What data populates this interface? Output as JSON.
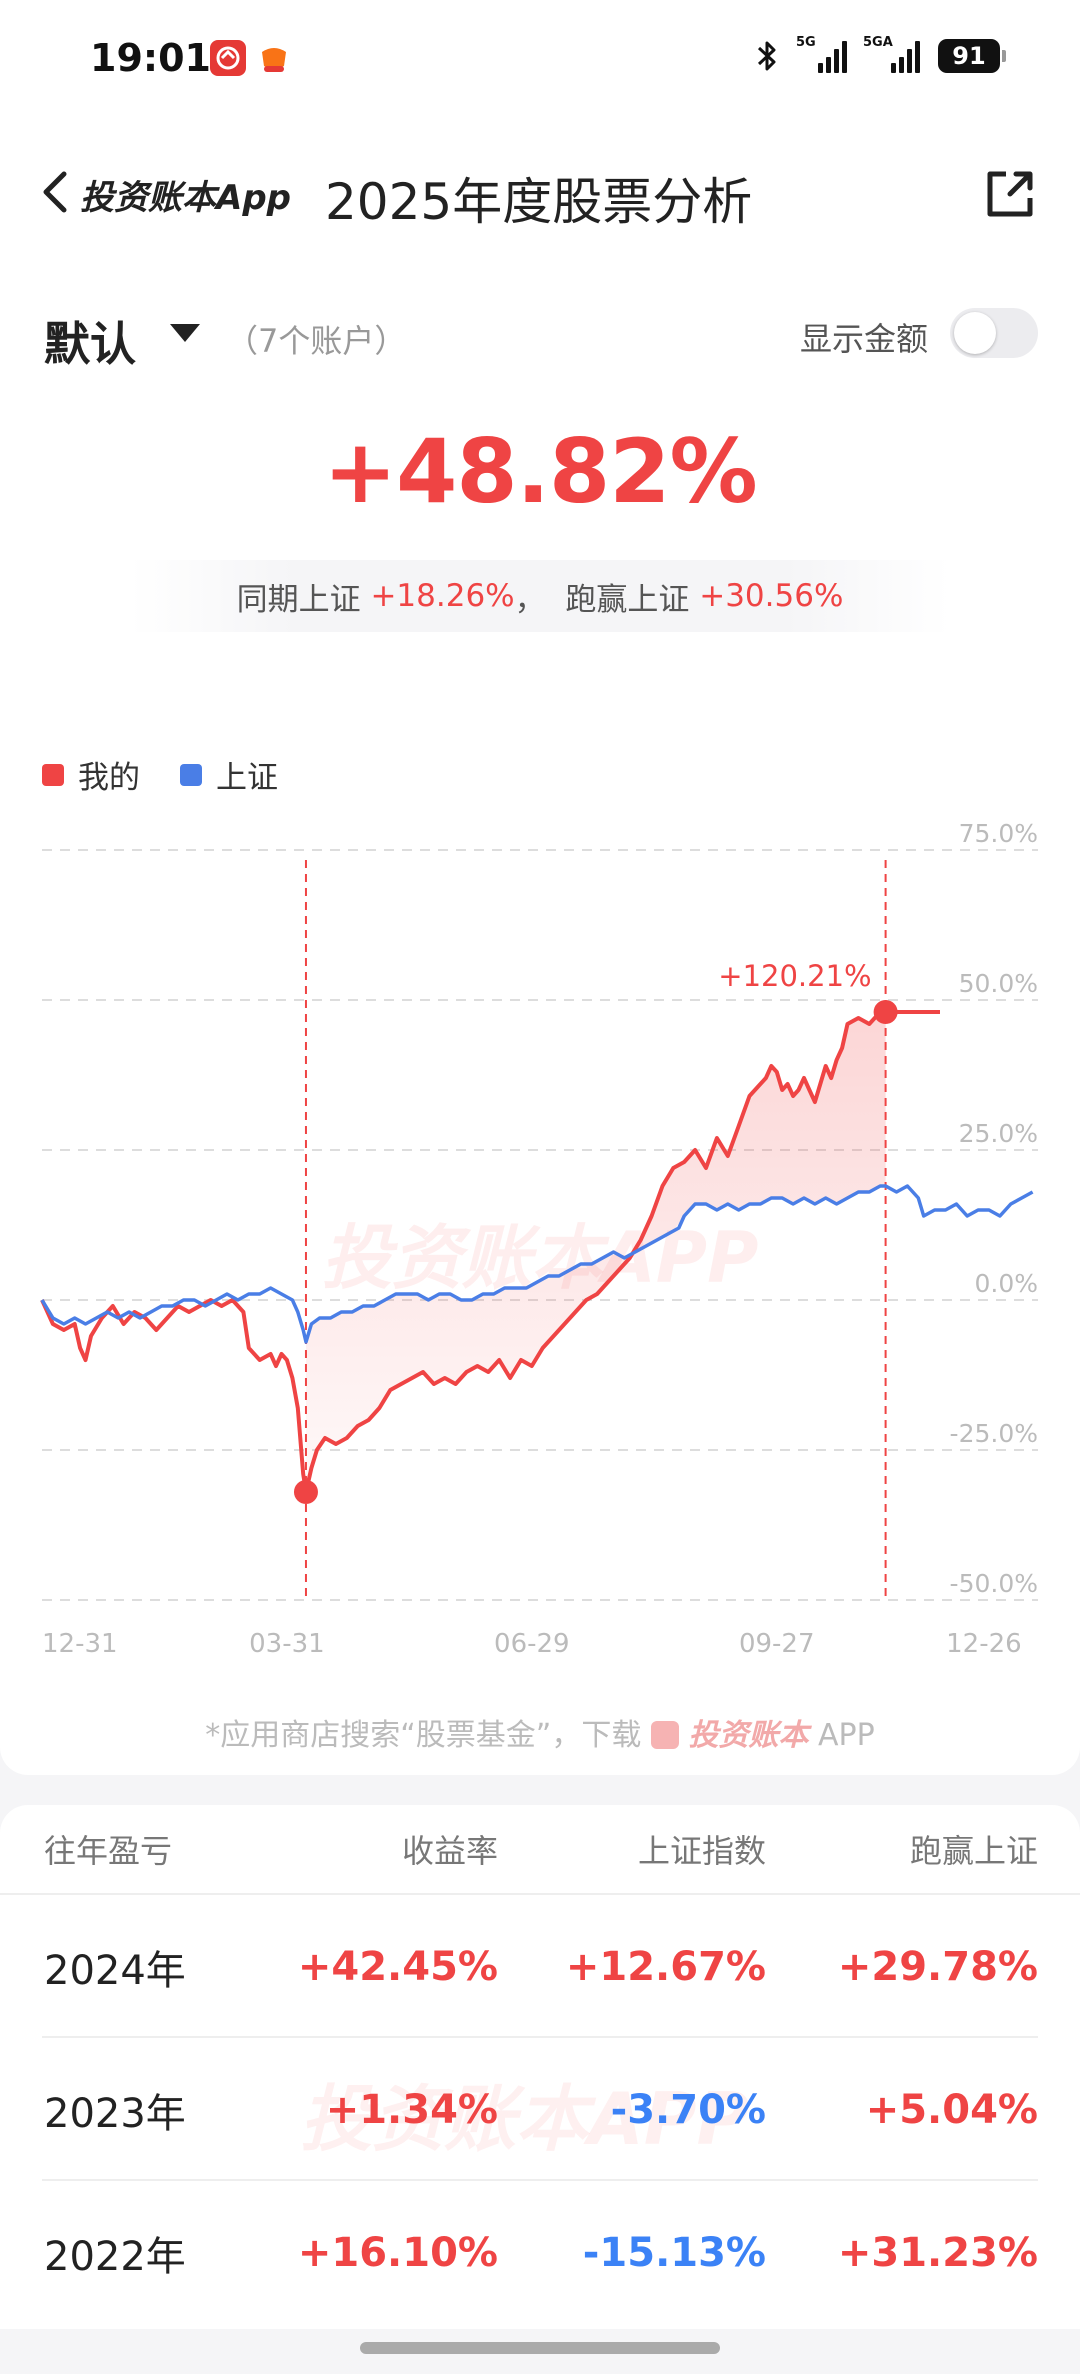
{
  "status_bar": {
    "time": "19:01",
    "battery": "91",
    "signal1_tag": "5G",
    "signal2_tag": "5GA",
    "bluetooth_icon": "bluetooth-icon"
  },
  "nav": {
    "brand": "投资账本App",
    "title": "2025年度股票分析"
  },
  "account": {
    "name": "默认",
    "count": "（7个账户）",
    "toggle_label": "显示金额",
    "toggle_on": false
  },
  "headline": {
    "return": "+48.82%",
    "compare_prefix": "同期上证",
    "compare_value": "+18.26%",
    "sep": "，",
    "beat_prefix": "跑赢上证",
    "beat_value": "+30.56%"
  },
  "legend": {
    "mine": "我的",
    "index": "上证"
  },
  "colors": {
    "mine": "#ef4444",
    "index": "#4a7ee6",
    "grid": "#dddddd"
  },
  "chart_data": {
    "type": "line",
    "title": "",
    "y_tick_labels": [
      "75.0%",
      "50.0%",
      "25.0%",
      "0.0%",
      "-25.0%",
      "-50.0%"
    ],
    "y_ticks": [
      75,
      50,
      25,
      0,
      -25,
      -50
    ],
    "ylim": [
      -50,
      75
    ],
    "x_tick_labels": [
      "12-31",
      "03-31",
      "06-29",
      "09-27",
      "12-26"
    ],
    "x_ticks": [
      0,
      90,
      180,
      270,
      360
    ],
    "xlim": [
      0,
      366
    ],
    "watermark": "投资账本APP",
    "annotation": {
      "label": "+120.21%",
      "x": 310,
      "y": 48
    },
    "marker_low": {
      "x": 97,
      "y": -32
    },
    "vlines": [
      97,
      310
    ],
    "series": [
      {
        "name": "我的",
        "points": [
          [
            0,
            0
          ],
          [
            4,
            -4
          ],
          [
            8,
            -5
          ],
          [
            12,
            -4
          ],
          [
            14,
            -8
          ],
          [
            16,
            -10
          ],
          [
            18,
            -6
          ],
          [
            22,
            -3
          ],
          [
            26,
            -1
          ],
          [
            30,
            -4
          ],
          [
            34,
            -2
          ],
          [
            38,
            -3
          ],
          [
            42,
            -5
          ],
          [
            46,
            -3
          ],
          [
            50,
            -1
          ],
          [
            54,
            -2
          ],
          [
            58,
            -1
          ],
          [
            62,
            0
          ],
          [
            66,
            -1
          ],
          [
            70,
            0
          ],
          [
            74,
            -2
          ],
          [
            76,
            -8
          ],
          [
            80,
            -10
          ],
          [
            84,
            -9
          ],
          [
            86,
            -11
          ],
          [
            88,
            -9
          ],
          [
            90,
            -10
          ],
          [
            92,
            -13
          ],
          [
            94,
            -18
          ],
          [
            96,
            -29
          ],
          [
            97,
            -32
          ],
          [
            99,
            -28
          ],
          [
            101,
            -25
          ],
          [
            104,
            -23
          ],
          [
            108,
            -24
          ],
          [
            112,
            -23
          ],
          [
            116,
            -21
          ],
          [
            120,
            -20
          ],
          [
            124,
            -18
          ],
          [
            128,
            -15
          ],
          [
            132,
            -14
          ],
          [
            136,
            -13
          ],
          [
            140,
            -12
          ],
          [
            144,
            -14
          ],
          [
            148,
            -13
          ],
          [
            152,
            -14
          ],
          [
            156,
            -12
          ],
          [
            160,
            -11
          ],
          [
            164,
            -12
          ],
          [
            168,
            -10
          ],
          [
            172,
            -13
          ],
          [
            176,
            -10
          ],
          [
            180,
            -11
          ],
          [
            184,
            -8
          ],
          [
            188,
            -6
          ],
          [
            192,
            -4
          ],
          [
            196,
            -2
          ],
          [
            200,
            0
          ],
          [
            204,
            1
          ],
          [
            208,
            3
          ],
          [
            212,
            5
          ],
          [
            216,
            7
          ],
          [
            220,
            10
          ],
          [
            224,
            14
          ],
          [
            228,
            19
          ],
          [
            232,
            22
          ],
          [
            236,
            23
          ],
          [
            240,
            25
          ],
          [
            244,
            22
          ],
          [
            248,
            27
          ],
          [
            252,
            24
          ],
          [
            256,
            29
          ],
          [
            260,
            34
          ],
          [
            264,
            36
          ],
          [
            266,
            37
          ],
          [
            268,
            39
          ],
          [
            270,
            38
          ],
          [
            272,
            35
          ],
          [
            274,
            36
          ],
          [
            276,
            34
          ],
          [
            278,
            35
          ],
          [
            280,
            37
          ],
          [
            282,
            35
          ],
          [
            284,
            33
          ],
          [
            286,
            36
          ],
          [
            288,
            39
          ],
          [
            290,
            37
          ],
          [
            292,
            40
          ],
          [
            294,
            42
          ],
          [
            296,
            46
          ],
          [
            300,
            47
          ],
          [
            304,
            46
          ],
          [
            308,
            48
          ],
          [
            310,
            48
          ],
          [
            330,
            48
          ]
        ]
      },
      {
        "name": "上证",
        "points": [
          [
            0,
            0
          ],
          [
            4,
            -3
          ],
          [
            8,
            -4
          ],
          [
            12,
            -3
          ],
          [
            16,
            -4
          ],
          [
            20,
            -3
          ],
          [
            24,
            -2
          ],
          [
            28,
            -3
          ],
          [
            32,
            -2
          ],
          [
            36,
            -3
          ],
          [
            40,
            -2
          ],
          [
            44,
            -1
          ],
          [
            48,
            -1
          ],
          [
            52,
            0
          ],
          [
            56,
            0
          ],
          [
            60,
            -1
          ],
          [
            64,
            0
          ],
          [
            68,
            1
          ],
          [
            72,
            0
          ],
          [
            76,
            1
          ],
          [
            80,
            1
          ],
          [
            84,
            2
          ],
          [
            88,
            1
          ],
          [
            92,
            0
          ],
          [
            94,
            -2
          ],
          [
            96,
            -5
          ],
          [
            97,
            -7
          ],
          [
            99,
            -4
          ],
          [
            102,
            -3
          ],
          [
            106,
            -3
          ],
          [
            110,
            -2
          ],
          [
            114,
            -2
          ],
          [
            118,
            -1
          ],
          [
            122,
            -1
          ],
          [
            126,
            0
          ],
          [
            130,
            1
          ],
          [
            134,
            1
          ],
          [
            138,
            1
          ],
          [
            142,
            0
          ],
          [
            146,
            1
          ],
          [
            150,
            1
          ],
          [
            154,
            0
          ],
          [
            158,
            0
          ],
          [
            162,
            1
          ],
          [
            166,
            1
          ],
          [
            170,
            2
          ],
          [
            174,
            2
          ],
          [
            178,
            2
          ],
          [
            182,
            3
          ],
          [
            186,
            4
          ],
          [
            190,
            4
          ],
          [
            194,
            5
          ],
          [
            198,
            6
          ],
          [
            202,
            6
          ],
          [
            206,
            7
          ],
          [
            210,
            8
          ],
          [
            214,
            7
          ],
          [
            218,
            8
          ],
          [
            222,
            9
          ],
          [
            226,
            10
          ],
          [
            230,
            11
          ],
          [
            234,
            12
          ],
          [
            236,
            14
          ],
          [
            240,
            16
          ],
          [
            244,
            16
          ],
          [
            248,
            15
          ],
          [
            252,
            16
          ],
          [
            256,
            15
          ],
          [
            260,
            16
          ],
          [
            264,
            16
          ],
          [
            268,
            17
          ],
          [
            272,
            17
          ],
          [
            276,
            16
          ],
          [
            280,
            17
          ],
          [
            284,
            16
          ],
          [
            288,
            17
          ],
          [
            292,
            16
          ],
          [
            296,
            17
          ],
          [
            300,
            18
          ],
          [
            304,
            18
          ],
          [
            308,
            19
          ],
          [
            310,
            19
          ],
          [
            314,
            18
          ],
          [
            318,
            19
          ],
          [
            322,
            17
          ],
          [
            324,
            14
          ],
          [
            328,
            15
          ],
          [
            332,
            15
          ],
          [
            336,
            16
          ],
          [
            340,
            14
          ],
          [
            344,
            15
          ],
          [
            348,
            15
          ],
          [
            352,
            14
          ],
          [
            356,
            16
          ],
          [
            360,
            17
          ],
          [
            364,
            18
          ]
        ]
      }
    ]
  },
  "footnote": {
    "prefix": "*应用商店搜索“股票基金”，下载",
    "brand": "投资账本",
    "suffix": "APP"
  },
  "table": {
    "headers": [
      "往年盈亏",
      "收益率",
      "上证指数",
      "跑赢上证"
    ],
    "watermark": "投资账本APP",
    "rows": [
      {
        "year": "2024年",
        "ret": "+42.45%",
        "index": "+12.67%",
        "beat": "+29.78%"
      },
      {
        "year": "2023年",
        "ret": "+1.34%",
        "index": "-3.70%",
        "beat": "+5.04%"
      },
      {
        "year": "2022年",
        "ret": "+16.10%",
        "index": "-15.13%",
        "beat": "+31.23%"
      }
    ]
  }
}
